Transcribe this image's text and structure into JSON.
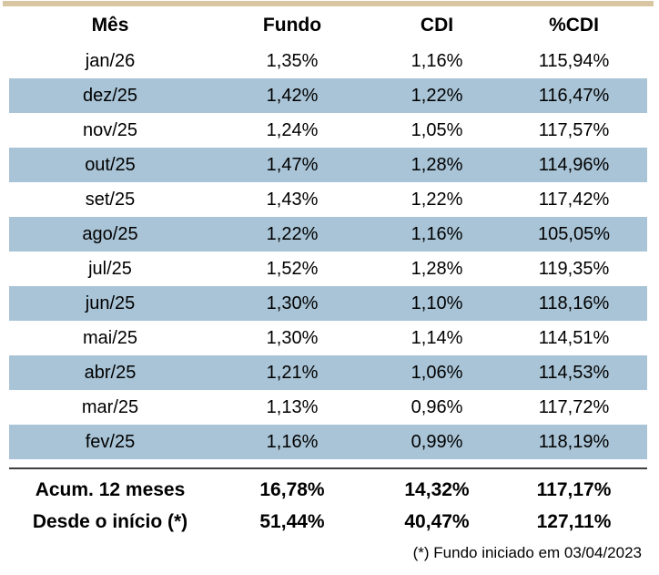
{
  "colors": {
    "top_border": "#d8c6a2",
    "stripe": "#a9c4d6",
    "separator": "#3f3f3f",
    "text": "#000000",
    "background": "#ffffff"
  },
  "table": {
    "headers": [
      "Mês",
      "Fundo",
      "CDI",
      "%CDI"
    ],
    "rows": [
      [
        "jan/26",
        "1,35%",
        "1,16%",
        "115,94%"
      ],
      [
        "dez/25",
        "1,42%",
        "1,22%",
        "116,47%"
      ],
      [
        "nov/25",
        "1,24%",
        "1,05%",
        "117,57%"
      ],
      [
        "out/25",
        "1,47%",
        "1,28%",
        "114,96%"
      ],
      [
        "set/25",
        "1,43%",
        "1,22%",
        "117,42%"
      ],
      [
        "ago/25",
        "1,22%",
        "1,16%",
        "105,05%"
      ],
      [
        "jul/25",
        "1,52%",
        "1,28%",
        "119,35%"
      ],
      [
        "jun/25",
        "1,30%",
        "1,10%",
        "118,16%"
      ],
      [
        "mai/25",
        "1,30%",
        "1,14%",
        "114,51%"
      ],
      [
        "abr/25",
        "1,21%",
        "1,06%",
        "114,53%"
      ],
      [
        "mar/25",
        "1,13%",
        "0,96%",
        "117,72%"
      ],
      [
        "fev/25",
        "1,16%",
        "0,99%",
        "118,19%"
      ]
    ],
    "totals": [
      {
        "label": "Acum. 12 meses",
        "values": [
          "16,78%",
          "14,32%",
          "117,17%"
        ]
      },
      {
        "label": "Desde o início (*)",
        "values": [
          "51,44%",
          "40,47%",
          "127,11%"
        ]
      }
    ],
    "footnote": "(*) Fundo iniciado em 03/04/2023"
  },
  "chart_data": {
    "type": "table",
    "title": "",
    "columns": [
      "Mês",
      "Fundo",
      "CDI",
      "%CDI"
    ],
    "rows": [
      [
        "jan/26",
        1.35,
        1.16,
        115.94
      ],
      [
        "dez/25",
        1.42,
        1.22,
        116.47
      ],
      [
        "nov/25",
        1.24,
        1.05,
        117.57
      ],
      [
        "out/25",
        1.47,
        1.28,
        114.96
      ],
      [
        "set/25",
        1.43,
        1.22,
        117.42
      ],
      [
        "ago/25",
        1.22,
        1.16,
        105.05
      ],
      [
        "jul/25",
        1.52,
        1.28,
        119.35
      ],
      [
        "jun/25",
        1.3,
        1.1,
        118.16
      ],
      [
        "mai/25",
        1.3,
        1.14,
        114.51
      ],
      [
        "abr/25",
        1.21,
        1.06,
        114.53
      ],
      [
        "mar/25",
        1.13,
        0.96,
        117.72
      ],
      [
        "fev/25",
        1.16,
        0.99,
        118.19
      ]
    ],
    "totals": [
      [
        "Acum. 12 meses",
        16.78,
        14.32,
        117.17
      ],
      [
        "Desde o início (*)",
        51.44,
        40.47,
        127.11
      ]
    ],
    "annotations": [
      "(*) Fundo iniciado em 03/04/2023"
    ],
    "units": "percent (pt-BR comma decimals)",
    "layout": "alternate rows shaded blue, totals separated by dark rule"
  }
}
